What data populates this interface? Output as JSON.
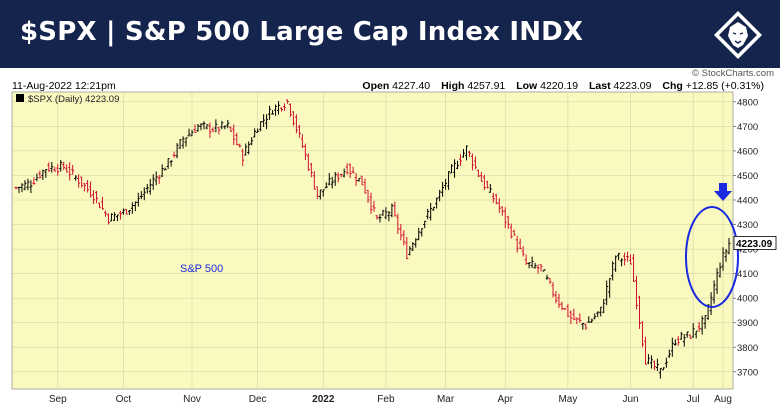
{
  "header": {
    "title": "$SPX | S&P 500 Large Cap Index INDX",
    "logo_icon": "lion-head-icon"
  },
  "info": {
    "timestamp": "11-Aug-2022 12:21pm",
    "watermark": "© StockCharts.com",
    "open_label": "Open",
    "open": "4227.40",
    "high_label": "High",
    "high": "4257.91",
    "low_label": "Low",
    "low": "4220.19",
    "last_label": "Last",
    "last": "4223.09",
    "chg_label": "Chg",
    "chg": "+12.85 (+0.31%)"
  },
  "chart_data": {
    "type": "line",
    "legend_label": "$SPX (Daily) 4223.09",
    "series_label": "S&P 500",
    "last_value_label": "4223.09",
    "y_ticks": [
      "4800",
      "4700",
      "4600",
      "4500",
      "4400",
      "4300",
      "4200",
      "4100",
      "4000",
      "3900",
      "3800",
      "3700"
    ],
    "x_labels": [
      "Sep",
      "Oct",
      "Nov",
      "Dec",
      "2022",
      "Feb",
      "Mar",
      "Apr",
      "May",
      "Jun",
      "Jul",
      "Aug"
    ],
    "ylim": [
      3630,
      4840
    ],
    "x_count": 240,
    "grid": true,
    "colors": {
      "up": "#000000",
      "down": "#d01030",
      "plot_bg": "#fafac0",
      "annotation": "#1a2ae0"
    },
    "series": [
      {
        "name": "S&P 500",
        "x": [
          0,
          5,
          10,
          16,
          21,
          26,
          31,
          36,
          41,
          46,
          51,
          56,
          61,
          66,
          71,
          76,
          81,
          86,
          91,
          96,
          101,
          106,
          111,
          116,
          121,
          126,
          131,
          136,
          141,
          146,
          151,
          156,
          161,
          166,
          171,
          176,
          181,
          186,
          191,
          196,
          201,
          206,
          211,
          216,
          221,
          226,
          231,
          236,
          239
        ],
        "y": [
          4450,
          4470,
          4530,
          4535,
          4480,
          4420,
          4325,
          4350,
          4400,
          4480,
          4550,
          4650,
          4700,
          4690,
          4700,
          4580,
          4700,
          4770,
          4800,
          4620,
          4420,
          4480,
          4530,
          4470,
          4320,
          4360,
          4180,
          4300,
          4400,
          4520,
          4610,
          4480,
          4390,
          4270,
          4140,
          4120,
          4000,
          3920,
          3890,
          3950,
          4170,
          4150,
          3750,
          3700,
          3830,
          3850,
          3910,
          4140,
          4223
        ]
      }
    ],
    "annotations": [
      "blue-arrow-down",
      "blue-ellipse-highlight"
    ]
  }
}
